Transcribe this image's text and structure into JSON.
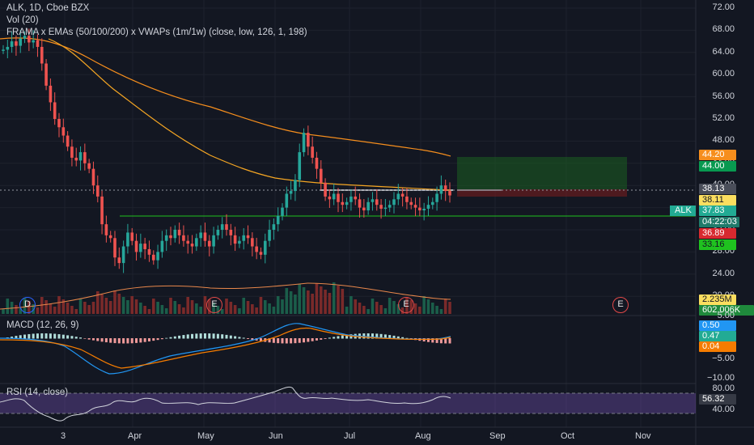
{
  "header": {
    "symbol_line": "ALK, 1D, Cboe BZX",
    "volume_line": "Vol (20)",
    "indicator_line": "FRAMA x EMAs (50/100/200) x VWAPs (1m/1w) (close, low, 126, 1, 198)"
  },
  "price_axis": {
    "ticks": [
      "72.00",
      "68.00",
      "64.00",
      "60.00",
      "56.00",
      "52.00",
      "48.00",
      "44.00",
      "40.00",
      "36.00",
      "32.00",
      "28.00",
      "24.00",
      "20.00",
      "16.00"
    ]
  },
  "price_tags": {
    "t1": {
      "value": "44.20",
      "color": "#f68e1d"
    },
    "t2": {
      "value": "44.00",
      "color": "#089950"
    },
    "t3": {
      "value": "38.13",
      "color": "#4a4e5a"
    },
    "t4": {
      "value": "38.11",
      "color": "#fbde5f"
    },
    "t5": {
      "value": "37.83",
      "color": "#22ab94"
    },
    "t6": {
      "value": "04:22:03",
      "color": "#1f7a6a"
    },
    "t7": {
      "value": "36.89",
      "color": "#d8292f"
    },
    "t8": {
      "value": "33.16",
      "color": "#1fc21f"
    },
    "t9": {
      "value": "2.235M",
      "color": "#fbde5f"
    },
    "t10": {
      "value": "602.006K",
      "color": "#1f8a3c"
    }
  },
  "symbol_badge": "ALK",
  "x_axis": {
    "labels": [
      "3",
      "Apr",
      "May",
      "Jun",
      "Jul",
      "Aug",
      "Sep",
      "Oct",
      "Nov"
    ]
  },
  "events": [
    "D",
    "E",
    "E",
    "E"
  ],
  "macd": {
    "title": "MACD (12, 26, 9)",
    "ticks": [
      "5.00",
      "0.00",
      "−5.00",
      "−10.00"
    ],
    "tags": {
      "a": {
        "value": "0.50",
        "color": "#2196f3"
      },
      "b": {
        "value": "0.47",
        "color": "#22ab94"
      },
      "c": {
        "value": "0.04",
        "color": "#f57c00"
      }
    }
  },
  "rsi": {
    "title": "RSI (14, close)",
    "ticks": [
      "80.00",
      "40.00"
    ],
    "tag": {
      "value": "56.32",
      "color": "#363a45"
    }
  },
  "chart_data": {
    "type": "candlestick",
    "price_range": [
      16,
      72
    ],
    "closes": [
      64.5,
      65.0,
      66.0,
      65.2,
      66.5,
      67.0,
      65.8,
      66.2,
      65.0,
      62.0,
      58.0,
      55.0,
      52.0,
      50.5,
      49.0,
      47.0,
      45.0,
      44.5,
      46.0,
      44.0,
      43.0,
      40.0,
      38.0,
      33.0,
      31.0,
      30.5,
      27.0,
      26.0,
      29.0,
      31.5,
      30.0,
      28.0,
      29.5,
      28.5,
      27.5,
      26.5,
      28.0,
      30.0,
      31.0,
      30.5,
      32.0,
      31.0,
      30.0,
      29.5,
      29.0,
      30.5,
      31.5,
      30.0,
      29.0,
      31.0,
      32.0,
      33.0,
      32.0,
      31.0,
      29.5,
      30.0,
      31.0,
      30.5,
      29.0,
      28.0,
      27.5,
      30.0,
      32.0,
      33.0,
      34.5,
      36.0,
      38.5,
      39.0,
      41.0,
      46.0,
      49.5,
      47.0,
      45.0,
      43.0,
      40.5,
      38.0,
      37.5,
      38.5,
      37.0,
      36.5,
      37.0,
      38.0,
      37.5,
      36.0,
      35.5,
      37.0,
      37.5,
      36.5,
      35.8,
      36.0,
      36.5,
      37.5,
      38.5,
      38.0,
      37.0,
      36.5,
      36.0,
      35.5,
      35.8,
      36.5,
      37.0,
      38.5,
      40.0,
      39.0,
      38.2
    ],
    "frama_or_ema_series": [
      {
        "name": "EMA",
        "color": "#f68e1d"
      },
      {
        "name": "EMA",
        "color": "#f5a623"
      }
    ],
    "horizontal_levels": [
      {
        "value": 33.16,
        "color": "#1fc21f"
      }
    ],
    "target_box": {
      "top": 44.2,
      "bottom": 38.13,
      "stop": 36.89
    }
  }
}
